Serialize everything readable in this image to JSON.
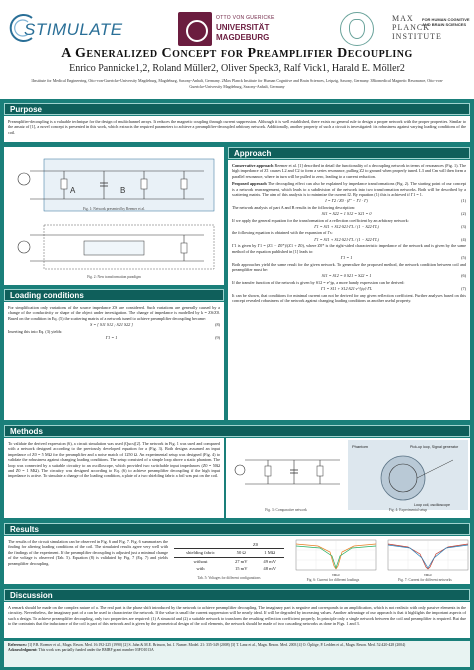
{
  "logos": {
    "stimulate": "STIMULATE",
    "ovgu_line1": "OTTO VON GUERICKE",
    "ovgu_line2": "UNIVERSITÄT",
    "ovgu_line3": "MAGDEBURG",
    "mpi_big": "MAX PLANCK INSTITUTE",
    "mpi_small": "FOR HUMAN COGNITIVE AND BRAIN SCIENCES"
  },
  "title": "A Generalized Concept for Preamplifier Decoupling",
  "authors": "Enrico Pannicke1,2, Roland Müller2, Oliver Speck3, Ralf Vick1, Harald E. Möller2",
  "affiliations": "1Institute for Medical Engineering, Otto-von-Guericke-University Magdeburg, Magdeburg, Saxony-Anhalt, Germany. 2Max Planck Institute for Human Cognitive and Brain Sciences, Leipzig, Saxony, Germany. 3Biomedical Magnetic Resonance, Otto-von-Guericke-University Magdeburg, Saxony-Anhalt, Germany",
  "sections": {
    "purpose": {
      "heading": "Purpose",
      "text": "Preamplifier-decoupling is a valuable technique for the design of multichannel arrays. It reduces the magnetic coupling through current suppression. Although it is well established, there exists no general rule to design a proper network with the proper properties. Similar to the ansatz of [1], a novel concept is presented in this work, which extracts the required parameters to achieve a preamplifier-decoupled arbitrary network. Additionally, another property of such a circuit is investigated: its robustness against varying loading conditions of the coil."
    },
    "approach": {
      "heading": "Approach",
      "conservative_label": "Conservative approach",
      "conservative_text": "Reemer et al. [1] described in detail the functionality of a decoupling network in terms of resonances (Fig. 1). The high impedance of Z1 causes L2 and C2 to form a series resonance, pulling Z2 to ground when properly tuned. L3 and Cm will then form a parallel resonance, where in turn will be pulled to zero, leading to a current reduction.",
      "proposed_label": "Proposed approach",
      "proposed_text": "The decoupling effect can also be explained by impedance transformations (Fig. 2). The starting point of our concept is a network rearrangement, which leads to a subdivision of the network into two transformation networks. Both will be described by a scattering matrix. The aim of this analysis is to minimize the current I2. By equation (1) this is achieved if Γ1 = 1.",
      "eq1": "I = Γ2 / Z0 · (Γ' − Γ1 · Γ)",
      "eq1_num": "(1)",
      "text_b": "The network analysis of part A and B results in the following description:",
      "eq2": "S11 = S22 = 1   S12 = S21 = 0",
      "eq2_num": "(2)",
      "text_c": "If we apply the general equation for the transformation of a reflection coefficient by an arbitrary network:",
      "eq3": "Γ1 = S11 + S12·S21·ΓL / (1 − S22·ΓL)",
      "eq3_num": "(3)",
      "text_d": "the following equation is obtained with the expansion of Γs:",
      "eq4": "Γ1 = S11 + S12·S21·ΓL / (1 − S22·ΓL)",
      "eq4_num": "(4)",
      "text_e": "Γ1 is given by Γ1 = (Z1 − Z0*)/(Z1 + Z0), where Z0* is the right-sided characteristic impedance of the network and is given by the same method of the equation published in [1] leads to:",
      "eq5": "Γ1 = 1",
      "eq5_num": "(5)",
      "text_f": "Both approaches yield the same result for the given network. To generalize the proposed method, the network condition between coil and preamplifier must be:",
      "eq6": "S11 = S12 = 0   S21 = S22 = 1",
      "eq6_num": "(6)",
      "text_g": "If the transfer function of the network is given by S12 = e^jφ, a more handy expression can be derived:",
      "eq7": "Γ1 = S11 + S12·S21·e^{jφ}·ΓL",
      "eq7_num": "(7)",
      "text_h": "It can be shown, that conditions for minimal current can not be derived for any given reflection coefficient. Further analyses based on this concept revealed robustness of the network against changing loading conditions as another useful property."
    },
    "loading": {
      "heading": "Loading conditions",
      "text_a": "For simplification only variations of the source impedance ZS are considered. Such variations are generally caused by a change of the conductivity or shape of the object under investigation. The change of impedance is modelled by k = ZS/Z0. Based on the condition in Eq. (5) the scattering matrix of a network tuned to achieve preamplifier decoupling became:",
      "eq": "S = [ S11  S12 ; S21  S22 ]",
      "eq_num": "(8)",
      "text_b": "Inserting this into Eq. (3) yields:",
      "eq2": "Γ1 = 1",
      "eq2_num": "(9)"
    },
    "methods": {
      "heading": "Methods",
      "text": "To validate the derived expression (6), a circuit simulation was used (Qucs)[2]. The network in Fig. 1 was used and compared with a network designed according to the previously developed equation for a (Fig. 3). Both designs assumed an input impedance of Z0 = 5 MΩ for the preamplifier and a noise match of 1250 Ω. An experimental setup was designed (Fig. 4) to validate the robustness against changing loading conditions. The setup consisted of a simple loop above a static phantom. The loop was connected by a suitable circuitry to an oscilloscope, which provided two switchable input impedances (Z0 = 50Ω and Z0 = 1 MΩ). The circuitry was designed according to Eq. (6) to achieve preamplifier decoupling if the high input impedance is active. To simulate a change of the loading condition, a plate of a two shielding fabric a foil was put on the coil.",
      "fig3_caption": "Fig. 3: Comparative network",
      "fig4_caption": "Fig. 4: Experimental setup",
      "fig4_phantom": "Phantom",
      "fig4_pickup": "Pick-up loop, Signal generator",
      "fig4_loop": "Loop coil, oscilloscope"
    },
    "results": {
      "heading": "Results",
      "text": "The results of the circuit simulation can be observed in Fig. 6 and Fig. 7. Fig. 6 summarizes the finding for altering loading conditions of the coil. The simulated results agree very well with the findings of the experiment. If the preamplifier decoupling is adjusted just a minimal change of the voltage is observed (Tab. 5). Equation (8) is validated by Fig. 7 (Eq. 7) and yields preamplifier decoupling.",
      "table_header": "Z0",
      "table_rows": [
        {
          "label": "shielding fabric",
          "col1": "50 Ω",
          "col2": "1 MΩ"
        },
        {
          "label": "without",
          "col1": "27 mV",
          "col2": "49 mV"
        },
        {
          "label": "with",
          "col1": "15 mV",
          "col2": "48 mV"
        }
      ],
      "table_caption": "Tab. 5: Voltages for different configurations",
      "fig6_caption": "Fig. 6: Current for different loadings",
      "fig7_caption": "Fig. 7: Current for different networks",
      "fig_xlabel": "f/MHz"
    },
    "discussion": {
      "heading": "Discussion",
      "text": "A remark should be made on the complex nature of a. The real part is the phase shift introduced by the network to achieve preamplifier decoupling. The imaginary part is negative and corresponds to an amplification, which is not realistic with only passive elements in the circuitry. Nevertheless, the imaginary part of a can be used to characterize the network. If the value is small the current suppression will be nearly ideal. If will be degraded by increasing values. Another advantage of our approach is that it highlights the important aspects of such a design. To achieve preamplifier decoupling, only two properties are required: (1) A sinusoid and (2) a suitable network to transform the resulting reflection coefficient properly. In principle only a single network between the coil and preamplifier is required. But due to the contraints that the inductance of the coil is part of this network and is given by the geometrical design of the coil elements, the network should be made of two cascading networks as done in Figs. 1 and 3."
    }
  },
  "figures": {
    "fig1_caption": "Fig. 1: Network presented by Reemer et al.",
    "fig2_caption": "Fig. 2: New transformation paradigm",
    "label_A": "A",
    "label_B": "B"
  },
  "references": {
    "label_refs": "References:",
    "refs": "[1] P.B. Roemer et al., Magn. Reson. Med. 16:192-225 (1990)   [2] S. Jahn & M.E. Brinson, Int. J. Numer. Model. 21: 335-349 (2008)   [3] T. Lanz et al., Magn. Reson. Med. 2003   [4] O. Öplöge, P. Ledden et al., Magn. Reson. Med. 52:420-428 (2004)",
    "label_ack": "Acknowledgment:",
    "ack": "This work was partially funded under the BMBF grant number 03FO1013A"
  }
}
